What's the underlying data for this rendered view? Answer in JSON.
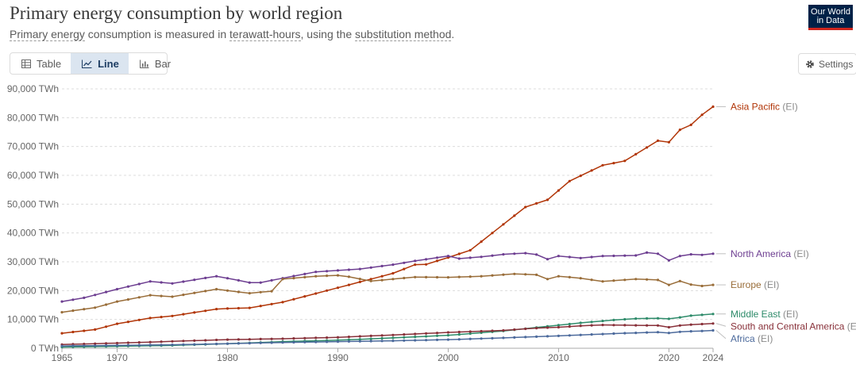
{
  "header": {
    "title": "Primary energy consumption by world region",
    "subtitle_link1": "Primary energy",
    "subtitle_mid1": " consumption is measured in ",
    "subtitle_link2": "terawatt-hours",
    "subtitle_mid2": ", using the ",
    "subtitle_link3": "substitution method",
    "subtitle_end": "."
  },
  "logo": {
    "line1": "Our World",
    "line2": "in Data"
  },
  "tabs": [
    {
      "label": "Table",
      "icon": "table-icon",
      "active": false
    },
    {
      "label": "Line",
      "icon": "line-chart-icon",
      "active": true
    },
    {
      "label": "Bar",
      "icon": "bar-chart-icon",
      "active": false
    }
  ],
  "settings": {
    "label": "Settings",
    "icon": "gear-icon"
  },
  "chart_data": {
    "type": "line",
    "title": "Primary energy consumption by world region",
    "ylim": [
      0,
      90000
    ],
    "yticks": [
      {
        "value": 0,
        "label": "0 TWh"
      },
      {
        "value": 10000,
        "label": "10,000 TWh"
      },
      {
        "value": 20000,
        "label": "20,000 TWh"
      },
      {
        "value": 30000,
        "label": "30,000 TWh"
      },
      {
        "value": 40000,
        "label": "40,000 TWh"
      },
      {
        "value": 50000,
        "label": "50,000 TWh"
      },
      {
        "value": 60000,
        "label": "60,000 TWh"
      },
      {
        "value": 70000,
        "label": "70,000 TWh"
      },
      {
        "value": 80000,
        "label": "80,000 TWh"
      },
      {
        "value": 90000,
        "label": "90,000 TWh"
      }
    ],
    "xlim": [
      1965,
      2024
    ],
    "xticks": [
      {
        "value": 1965,
        "label": "1965"
      },
      {
        "value": 1970,
        "label": "1970"
      },
      {
        "value": 1980,
        "label": "1980"
      },
      {
        "value": 1990,
        "label": "1990"
      },
      {
        "value": 2000,
        "label": "2000"
      },
      {
        "value": 2010,
        "label": "2010"
      },
      {
        "value": 2020,
        "label": "2020"
      },
      {
        "value": 2024,
        "label": "2024"
      }
    ],
    "series": [
      {
        "name": "Asia Pacific",
        "suffix": " (EI)",
        "color": "#b13507",
        "keypoints": [
          [
            1965,
            5200
          ],
          [
            1968,
            6500
          ],
          [
            1970,
            8500
          ],
          [
            1973,
            10500
          ],
          [
            1975,
            11200
          ],
          [
            1979,
            13600
          ],
          [
            1980,
            13800
          ],
          [
            1982,
            14000
          ],
          [
            1985,
            16000
          ],
          [
            1990,
            21000
          ],
          [
            1995,
            26000
          ],
          [
            1997,
            29000
          ],
          [
            1998,
            29100
          ],
          [
            2000,
            31500
          ],
          [
            2002,
            34000
          ],
          [
            2004,
            40000
          ],
          [
            2007,
            49000
          ],
          [
            2009,
            51500
          ],
          [
            2011,
            58000
          ],
          [
            2014,
            63500
          ],
          [
            2016,
            65000
          ],
          [
            2019,
            72000
          ],
          [
            2020,
            71500
          ],
          [
            2021,
            75800
          ],
          [
            2022,
            77500
          ],
          [
            2023,
            81000
          ],
          [
            2024,
            83800
          ]
        ]
      },
      {
        "name": "North America",
        "suffix": " (EI)",
        "color": "#6d3e91",
        "keypoints": [
          [
            1965,
            16200
          ],
          [
            1967,
            17500
          ],
          [
            1970,
            20500
          ],
          [
            1973,
            23200
          ],
          [
            1975,
            22500
          ],
          [
            1979,
            25000
          ],
          [
            1980,
            24300
          ],
          [
            1982,
            22800
          ],
          [
            1983,
            22800
          ],
          [
            1985,
            24300
          ],
          [
            1988,
            26500
          ],
          [
            1990,
            27000
          ],
          [
            1992,
            27500
          ],
          [
            1995,
            29000
          ],
          [
            1997,
            30300
          ],
          [
            2000,
            32000
          ],
          [
            2001,
            31100
          ],
          [
            2003,
            31700
          ],
          [
            2005,
            32600
          ],
          [
            2007,
            33000
          ],
          [
            2008,
            32500
          ],
          [
            2009,
            30900
          ],
          [
            2010,
            32000
          ],
          [
            2012,
            31300
          ],
          [
            2014,
            32000
          ],
          [
            2017,
            32200
          ],
          [
            2018,
            33200
          ],
          [
            2019,
            32800
          ],
          [
            2020,
            30500
          ],
          [
            2021,
            32000
          ],
          [
            2022,
            32600
          ],
          [
            2023,
            32400
          ],
          [
            2024,
            32800
          ]
        ]
      },
      {
        "name": "Europe",
        "suffix": " (EI)",
        "color": "#996d39",
        "keypoints": [
          [
            1965,
            12500
          ],
          [
            1968,
            14100
          ],
          [
            1970,
            16200
          ],
          [
            1973,
            18400
          ],
          [
            1975,
            17900
          ],
          [
            1979,
            20500
          ],
          [
            1980,
            20000
          ],
          [
            1982,
            19100
          ],
          [
            1984,
            19800
          ],
          [
            1985,
            24000
          ],
          [
            1988,
            25000
          ],
          [
            1990,
            25300
          ],
          [
            1991,
            24800
          ],
          [
            1993,
            23300
          ],
          [
            1995,
            24000
          ],
          [
            1997,
            24700
          ],
          [
            2000,
            24600
          ],
          [
            2003,
            25000
          ],
          [
            2006,
            25800
          ],
          [
            2008,
            25500
          ],
          [
            2009,
            24000
          ],
          [
            2010,
            25000
          ],
          [
            2012,
            24300
          ],
          [
            2014,
            23200
          ],
          [
            2017,
            24000
          ],
          [
            2019,
            23700
          ],
          [
            2020,
            22000
          ],
          [
            2021,
            23300
          ],
          [
            2022,
            22100
          ],
          [
            2023,
            21600
          ],
          [
            2024,
            22000
          ]
        ]
      },
      {
        "name": "Middle East",
        "suffix": " (EI)",
        "color": "#2e8b6a",
        "keypoints": [
          [
            1965,
            400
          ],
          [
            1970,
            700
          ],
          [
            1975,
            1000
          ],
          [
            1980,
            1600
          ],
          [
            1985,
            2300
          ],
          [
            1990,
            2800
          ],
          [
            1995,
            3600
          ],
          [
            2000,
            4500
          ],
          [
            2005,
            6000
          ],
          [
            2008,
            7200
          ],
          [
            2010,
            8000
          ],
          [
            2012,
            8800
          ],
          [
            2015,
            9800
          ],
          [
            2017,
            10300
          ],
          [
            2019,
            10400
          ],
          [
            2020,
            10200
          ],
          [
            2021,
            10700
          ],
          [
            2022,
            11300
          ],
          [
            2023,
            11600
          ],
          [
            2024,
            11900
          ]
        ]
      },
      {
        "name": "South and Central America",
        "suffix": " (EI)",
        "color": "#883039",
        "keypoints": [
          [
            1965,
            1300
          ],
          [
            1970,
            1800
          ],
          [
            1975,
            2400
          ],
          [
            1980,
            3000
          ],
          [
            1985,
            3300
          ],
          [
            1990,
            3800
          ],
          [
            1995,
            4600
          ],
          [
            2000,
            5500
          ],
          [
            2005,
            6200
          ],
          [
            2008,
            7000
          ],
          [
            2010,
            7300
          ],
          [
            2012,
            7800
          ],
          [
            2014,
            8100
          ],
          [
            2016,
            8000
          ],
          [
            2019,
            7900
          ],
          [
            2020,
            7300
          ],
          [
            2021,
            7900
          ],
          [
            2022,
            8200
          ],
          [
            2023,
            8400
          ],
          [
            2024,
            8600
          ]
        ]
      },
      {
        "name": "Africa",
        "suffix": " (EI)",
        "color": "#4c6a9c",
        "keypoints": [
          [
            1965,
            800
          ],
          [
            1970,
            1000
          ],
          [
            1975,
            1200
          ],
          [
            1980,
            1600
          ],
          [
            1985,
            2000
          ],
          [
            1990,
            2300
          ],
          [
            1995,
            2600
          ],
          [
            2000,
            3000
          ],
          [
            2005,
            3600
          ],
          [
            2010,
            4300
          ],
          [
            2015,
            5100
          ],
          [
            2019,
            5600
          ],
          [
            2020,
            5300
          ],
          [
            2021,
            5700
          ],
          [
            2022,
            5900
          ],
          [
            2023,
            6000
          ],
          [
            2024,
            6200
          ]
        ]
      }
    ]
  }
}
